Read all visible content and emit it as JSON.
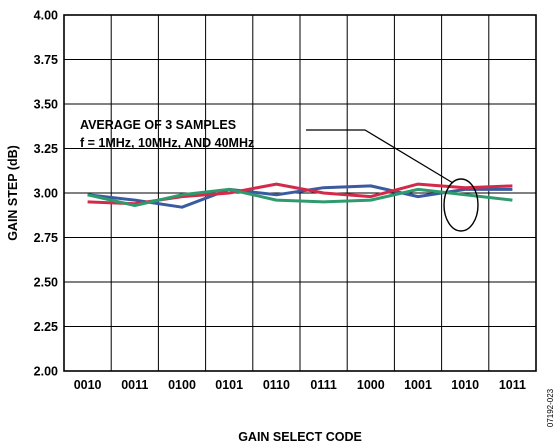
{
  "chart_data": {
    "type": "line",
    "xlabel": "GAIN SELECT CODE",
    "ylabel": "GAIN STEP (dB)",
    "ylim": [
      2.0,
      4.0
    ],
    "yticks": [
      "2.00",
      "2.25",
      "2.50",
      "2.75",
      "3.00",
      "3.25",
      "3.50",
      "3.75",
      "4.00"
    ],
    "categories": [
      "0010",
      "0011",
      "0100",
      "0101",
      "0110",
      "0111",
      "1000",
      "1001",
      "1010",
      "1011"
    ],
    "grid": true,
    "annotation": {
      "line1": "AVERAGE OF 3 SAMPLES",
      "line2": "f = 1MHz, 10MHz, AND 40MHz"
    },
    "figure_id": "07192-023",
    "series": [
      {
        "color": "#3a5ba0",
        "values": [
          2.99,
          2.96,
          2.92,
          3.02,
          2.99,
          3.03,
          3.04,
          2.98,
          3.02,
          3.02
        ]
      },
      {
        "color": "#d42a4a",
        "values": [
          2.95,
          2.94,
          2.98,
          3.0,
          3.05,
          3.0,
          2.98,
          3.05,
          3.03,
          3.04
        ]
      },
      {
        "color": "#2e9a6e",
        "values": [
          2.99,
          2.93,
          2.99,
          3.02,
          2.96,
          2.95,
          2.96,
          3.02,
          2.99,
          2.96
        ]
      }
    ]
  }
}
